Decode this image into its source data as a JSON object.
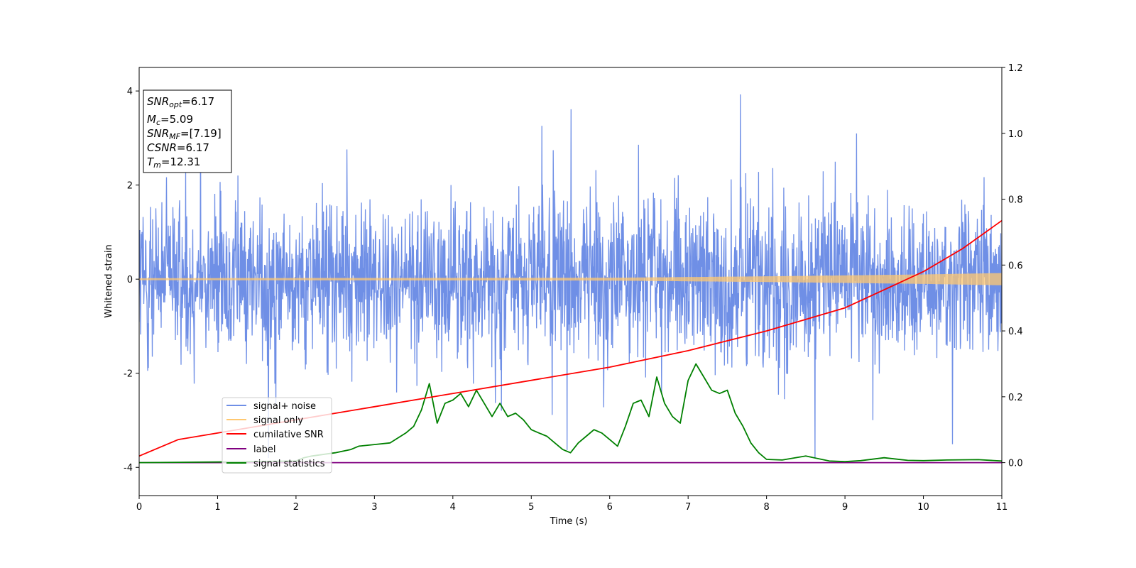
{
  "chart_data": {
    "type": "line",
    "xlabel": "Time (s)",
    "ylabel": "Whitened strain",
    "xlim": [
      0,
      11
    ],
    "ylim": [
      -4.6,
      4.5
    ],
    "y2lim": [
      -0.1,
      1.2
    ],
    "xticks": [
      0,
      1,
      2,
      3,
      4,
      5,
      6,
      7,
      8,
      9,
      10,
      11
    ],
    "yticks": [
      -4,
      -2,
      0,
      2,
      4
    ],
    "y2ticks": [
      "0.0",
      "0.2",
      "0.4",
      "0.6",
      "0.8",
      "1.0",
      "1.2"
    ],
    "y2tick_values": [
      0.0,
      0.2,
      0.4,
      0.6,
      0.8,
      1.0,
      1.2
    ],
    "legend_position": "lower-left",
    "info_box": {
      "snr_opt": {
        "base": "SNR",
        "sub": "opt",
        "value": "=6.17"
      },
      "mc": {
        "base": "M",
        "sub": "c",
        "value": "=5.09"
      },
      "snr_mf": {
        "base": "SNR",
        "sub": "MF",
        "value": "=[7.19]"
      },
      "csnr": {
        "base": "CSNR",
        "value": "=6.17"
      },
      "tm": {
        "base": "T",
        "sub": "m",
        "value": "=12.31"
      }
    },
    "series": [
      {
        "name": "signal+ noise",
        "axis": "left",
        "color": "#6f8fe6",
        "description_stats": {
          "typical_range": [
            -2.2,
            2.2
          ],
          "max_spike": 4.05,
          "min_spike": -3.8
        }
      },
      {
        "name": "signal only",
        "axis": "left",
        "color": "#ffc870",
        "amplitude_envelope": {
          "x": [
            0,
            6,
            8,
            10,
            11
          ],
          "amp": [
            0.02,
            0.03,
            0.06,
            0.1,
            0.13
          ]
        }
      },
      {
        "name": "cumilative SNR",
        "axis": "right",
        "color": "#ff0000",
        "x": [
          0,
          0.5,
          1,
          2,
          3,
          4,
          5,
          6,
          7,
          8,
          9,
          10,
          10.5,
          11
        ],
        "values": [
          0.02,
          0.07,
          0.09,
          0.13,
          0.17,
          0.21,
          0.25,
          0.29,
          0.34,
          0.4,
          0.47,
          0.58,
          0.65,
          0.735
        ]
      },
      {
        "name": "label",
        "axis": "right",
        "color": "#800080",
        "x": [
          0,
          11
        ],
        "values": [
          0.0,
          0.0
        ]
      },
      {
        "name": "signal statistics",
        "axis": "right",
        "color": "#008000",
        "x": [
          0,
          1,
          2,
          2.1,
          2.2,
          2.5,
          2.7,
          2.8,
          3.0,
          3.2,
          3.4,
          3.5,
          3.6,
          3.7,
          3.8,
          3.9,
          4.0,
          4.1,
          4.2,
          4.3,
          4.4,
          4.5,
          4.6,
          4.7,
          4.8,
          4.9,
          5.0,
          5.1,
          5.2,
          5.3,
          5.4,
          5.5,
          5.6,
          5.7,
          5.8,
          5.9,
          6.0,
          6.1,
          6.2,
          6.3,
          6.4,
          6.5,
          6.6,
          6.7,
          6.8,
          6.9,
          7.0,
          7.1,
          7.2,
          7.3,
          7.4,
          7.5,
          7.6,
          7.7,
          7.8,
          7.9,
          8.0,
          8.2,
          8.5,
          8.8,
          9.0,
          9.2,
          9.5,
          9.8,
          10.0,
          10.3,
          10.7,
          11.0
        ],
        "values": [
          0.0,
          0.002,
          0.005,
          0.015,
          0.02,
          0.03,
          0.04,
          0.05,
          0.055,
          0.06,
          0.09,
          0.11,
          0.16,
          0.24,
          0.12,
          0.18,
          0.19,
          0.21,
          0.17,
          0.22,
          0.18,
          0.14,
          0.18,
          0.14,
          0.15,
          0.13,
          0.1,
          0.09,
          0.08,
          0.06,
          0.04,
          0.03,
          0.06,
          0.08,
          0.1,
          0.09,
          0.07,
          0.05,
          0.11,
          0.18,
          0.19,
          0.14,
          0.26,
          0.18,
          0.14,
          0.12,
          0.25,
          0.3,
          0.26,
          0.22,
          0.21,
          0.22,
          0.15,
          0.11,
          0.06,
          0.03,
          0.01,
          0.008,
          0.02,
          0.005,
          0.003,
          0.006,
          0.015,
          0.007,
          0.006,
          0.008,
          0.009,
          0.005
        ]
      }
    ]
  }
}
